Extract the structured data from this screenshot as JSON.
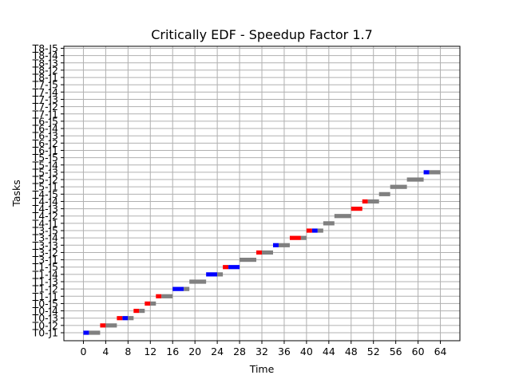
{
  "chart_data": {
    "type": "gantt",
    "title": "Critically EDF - Speedup Factor 1.7",
    "xlabel": "Time",
    "ylabel": "Tasks",
    "xlim": [
      -3.5,
      67.5
    ],
    "x_ticks": [
      0,
      4,
      8,
      12,
      16,
      20,
      24,
      28,
      32,
      36,
      40,
      44,
      48,
      52,
      56,
      60,
      64
    ],
    "grid": true,
    "categories": [
      "T0-J1",
      "T0-J2",
      "T0-J3",
      "T0-J4",
      "T0-J5",
      "T1-J1",
      "T1-J2",
      "T1-J3",
      "T1-J4",
      "T1-J5",
      "T3-J1",
      "T3-J2",
      "T3-J3",
      "T3-J4",
      "T3-J5",
      "T4-J1",
      "T4-J2",
      "T4-J3",
      "T4-J4",
      "T4-J5",
      "T5-J1",
      "T5-J2",
      "T5-J3",
      "T5-J4",
      "T5-J5",
      "T6-J1",
      "T6-J2",
      "T6-J3",
      "T6-J4",
      "T6-J5",
      "T7-J1",
      "T7-J2",
      "T7-J3",
      "T7-J4",
      "T7-J5",
      "T8-J1",
      "T8-J2",
      "T8-J3",
      "T8-J4",
      "T8-J5"
    ],
    "colors": {
      "blue": "#0000ff",
      "red": "#ff0000",
      "gray": "#808080"
    },
    "segments": [
      {
        "task": "T0-J1",
        "start": 0.0,
        "end": 1.0,
        "color": "blue"
      },
      {
        "task": "T0-J1",
        "start": 1.0,
        "end": 3.0,
        "color": "gray"
      },
      {
        "task": "T0-J2",
        "start": 3.0,
        "end": 4.0,
        "color": "red"
      },
      {
        "task": "T0-J2",
        "start": 4.0,
        "end": 6.0,
        "color": "gray"
      },
      {
        "task": "T0-J3",
        "start": 6.0,
        "end": 7.0,
        "color": "red"
      },
      {
        "task": "T0-J3",
        "start": 7.0,
        "end": 8.0,
        "color": "blue"
      },
      {
        "task": "T0-J3",
        "start": 8.0,
        "end": 9.0,
        "color": "gray"
      },
      {
        "task": "T0-J4",
        "start": 9.0,
        "end": 10.0,
        "color": "red"
      },
      {
        "task": "T0-J4",
        "start": 10.0,
        "end": 11.0,
        "color": "gray"
      },
      {
        "task": "T0-J5",
        "start": 11.0,
        "end": 12.0,
        "color": "red"
      },
      {
        "task": "T0-J5",
        "start": 12.0,
        "end": 13.0,
        "color": "gray"
      },
      {
        "task": "T1-J1",
        "start": 13.0,
        "end": 14.0,
        "color": "red"
      },
      {
        "task": "T1-J1",
        "start": 14.0,
        "end": 16.0,
        "color": "gray"
      },
      {
        "task": "T1-J2",
        "start": 16.0,
        "end": 18.0,
        "color": "blue"
      },
      {
        "task": "T1-J2",
        "start": 18.0,
        "end": 19.0,
        "color": "gray"
      },
      {
        "task": "T1-J3",
        "start": 19.0,
        "end": 22.0,
        "color": "gray"
      },
      {
        "task": "T1-J4",
        "start": 22.0,
        "end": 24.0,
        "color": "blue"
      },
      {
        "task": "T1-J4",
        "start": 24.0,
        "end": 25.0,
        "color": "gray"
      },
      {
        "task": "T1-J5",
        "start": 25.0,
        "end": 26.0,
        "color": "red"
      },
      {
        "task": "T1-J5",
        "start": 26.0,
        "end": 28.0,
        "color": "blue"
      },
      {
        "task": "T3-J1",
        "start": 28.0,
        "end": 31.0,
        "color": "gray"
      },
      {
        "task": "T3-J2",
        "start": 31.0,
        "end": 32.0,
        "color": "red"
      },
      {
        "task": "T3-J2",
        "start": 32.0,
        "end": 34.0,
        "color": "gray"
      },
      {
        "task": "T3-J3",
        "start": 34.0,
        "end": 35.0,
        "color": "blue"
      },
      {
        "task": "T3-J3",
        "start": 35.0,
        "end": 37.0,
        "color": "gray"
      },
      {
        "task": "T3-J4",
        "start": 37.0,
        "end": 39.0,
        "color": "red"
      },
      {
        "task": "T3-J4",
        "start": 39.0,
        "end": 40.0,
        "color": "gray"
      },
      {
        "task": "T3-J5",
        "start": 40.0,
        "end": 41.0,
        "color": "red"
      },
      {
        "task": "T3-J5",
        "start": 41.0,
        "end": 42.0,
        "color": "blue"
      },
      {
        "task": "T3-J5",
        "start": 42.0,
        "end": 43.0,
        "color": "gray"
      },
      {
        "task": "T4-J1",
        "start": 43.0,
        "end": 45.0,
        "color": "gray"
      },
      {
        "task": "T4-J2",
        "start": 45.0,
        "end": 48.0,
        "color": "gray"
      },
      {
        "task": "T4-J3",
        "start": 48.0,
        "end": 50.0,
        "color": "red"
      },
      {
        "task": "T4-J4",
        "start": 50.0,
        "end": 51.0,
        "color": "red"
      },
      {
        "task": "T4-J4",
        "start": 51.0,
        "end": 53.0,
        "color": "gray"
      },
      {
        "task": "T4-J5",
        "start": 53.0,
        "end": 55.0,
        "color": "gray"
      },
      {
        "task": "T5-J1",
        "start": 55.0,
        "end": 58.0,
        "color": "gray"
      },
      {
        "task": "T5-J2",
        "start": 58.0,
        "end": 61.0,
        "color": "gray"
      },
      {
        "task": "T5-J3",
        "start": 61.0,
        "end": 62.0,
        "color": "blue"
      },
      {
        "task": "T5-J3",
        "start": 62.0,
        "end": 64.0,
        "color": "gray"
      }
    ]
  }
}
